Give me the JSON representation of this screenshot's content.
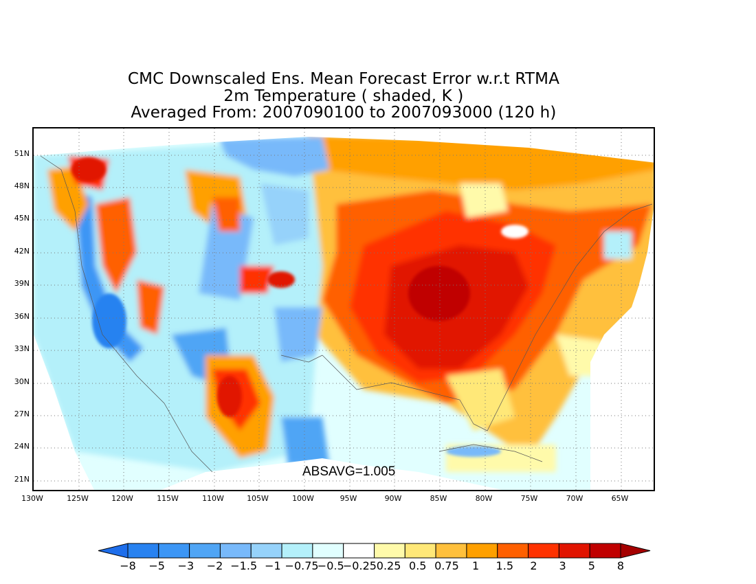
{
  "title": {
    "line1": "CMC Downscaled Ens. Mean Forecast Error w.r.t RTMA",
    "line2": "2m Temperature ( shaded, K )",
    "line3": "Averaged From: 2007090100 to 2007093000 (120 h)"
  },
  "absavg_label": "ABSAVG=1.005",
  "map": {
    "lat_labels": [
      "51N",
      "48N",
      "45N",
      "42N",
      "39N",
      "36N",
      "33N",
      "30N",
      "27N",
      "24N",
      "21N"
    ],
    "lon_labels": [
      "130W",
      "125W",
      "120W",
      "115W",
      "110W",
      "105W",
      "100W",
      "95W",
      "90W",
      "85W",
      "80W",
      "75W",
      "70W",
      "65W"
    ],
    "grid": "dotted",
    "field": "2m temperature forecast error (K)"
  },
  "colorbar": {
    "labels": [
      "−8",
      "−5",
      "−3",
      "−2",
      "−1.5",
      "−1",
      "−0.75",
      "−0.5",
      "−0.25",
      "0.25",
      "0.5",
      "0.75",
      "1",
      "1.5",
      "2",
      "3",
      "5",
      "8"
    ],
    "colors": [
      "#1e6eeb",
      "#2882f0",
      "#3c96f5",
      "#50a5f5",
      "#78b9fa",
      "#96d2fa",
      "#b4f0fa",
      "#e1ffff",
      "#ffffff",
      "#fffaaa",
      "#ffe878",
      "#ffc03c",
      "#ffa000",
      "#ff6000",
      "#ff3200",
      "#e11400",
      "#c00000",
      "#a50000"
    ]
  }
}
